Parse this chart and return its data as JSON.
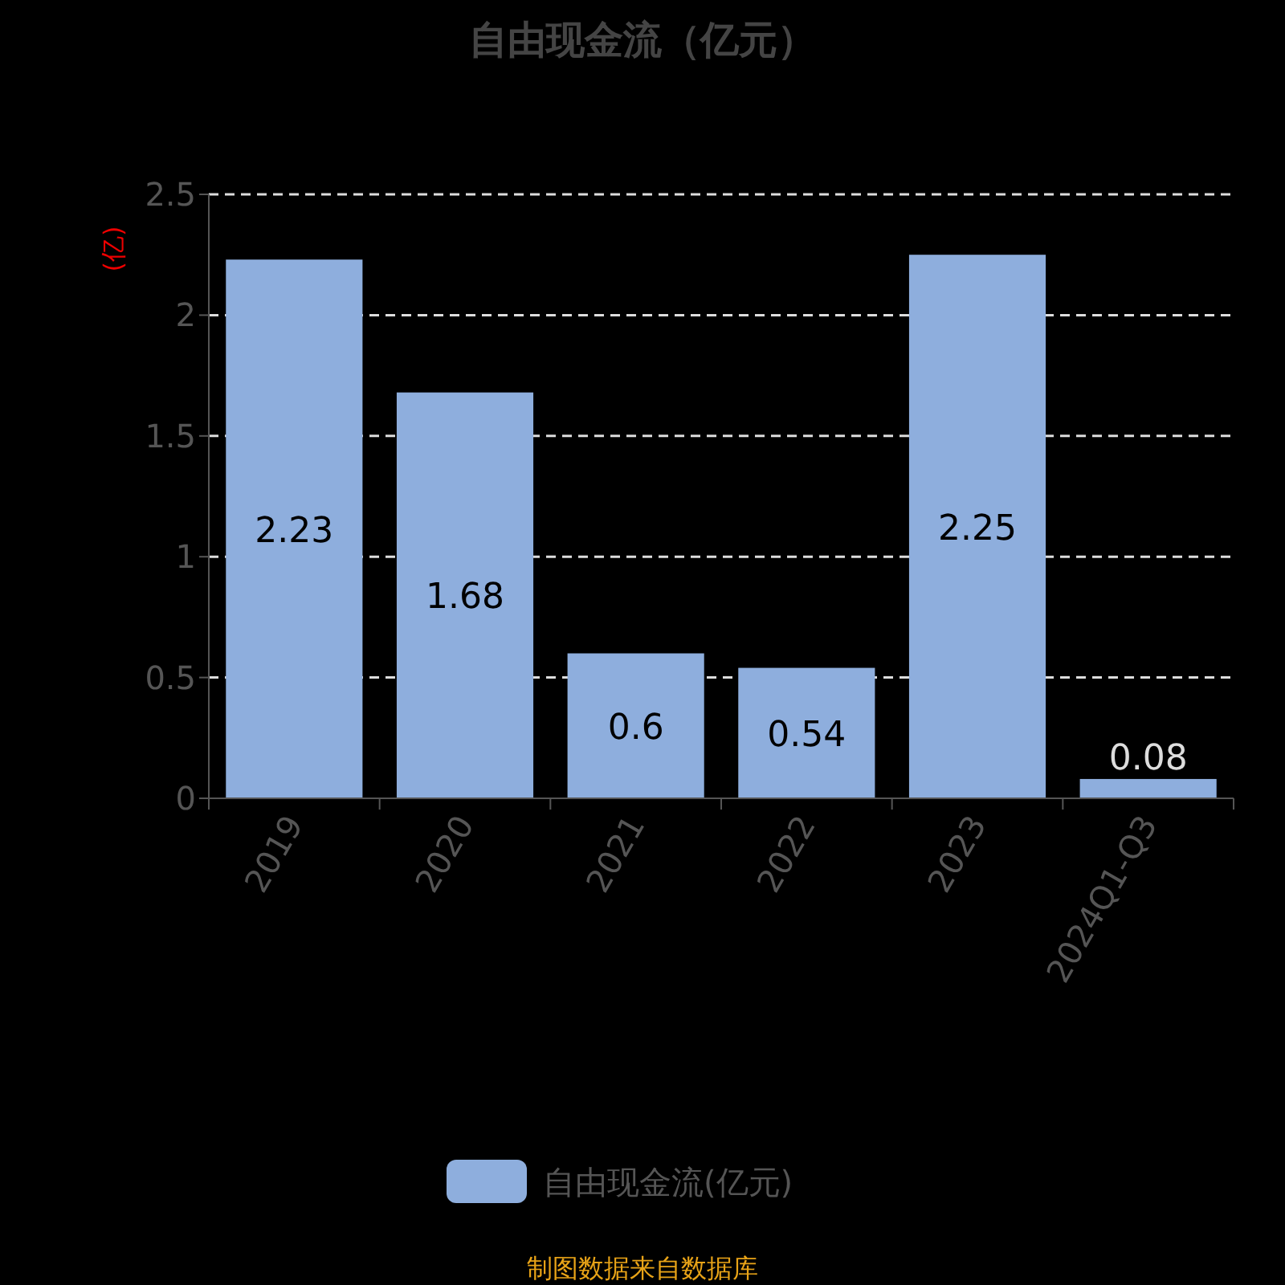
{
  "chart_data": {
    "type": "bar",
    "title": "自由现金流（亿元）",
    "ylabel": "(亿)",
    "categories": [
      "2019",
      "2020",
      "2021",
      "2022",
      "2023",
      "2024Q1-Q3"
    ],
    "series": [
      {
        "name": "自由现金流(亿元)",
        "color": "#8eaedd",
        "values": [
          2.23,
          1.68,
          0.6,
          0.54,
          2.25,
          0.08
        ]
      }
    ],
    "ylim": [
      0,
      2.5
    ],
    "yticks": [
      0,
      0.5,
      1,
      1.5,
      2,
      2.5
    ],
    "grid": "y",
    "legend": "bottom",
    "data_labels": true,
    "annotations": [
      "制图数据来自数据库"
    ]
  }
}
